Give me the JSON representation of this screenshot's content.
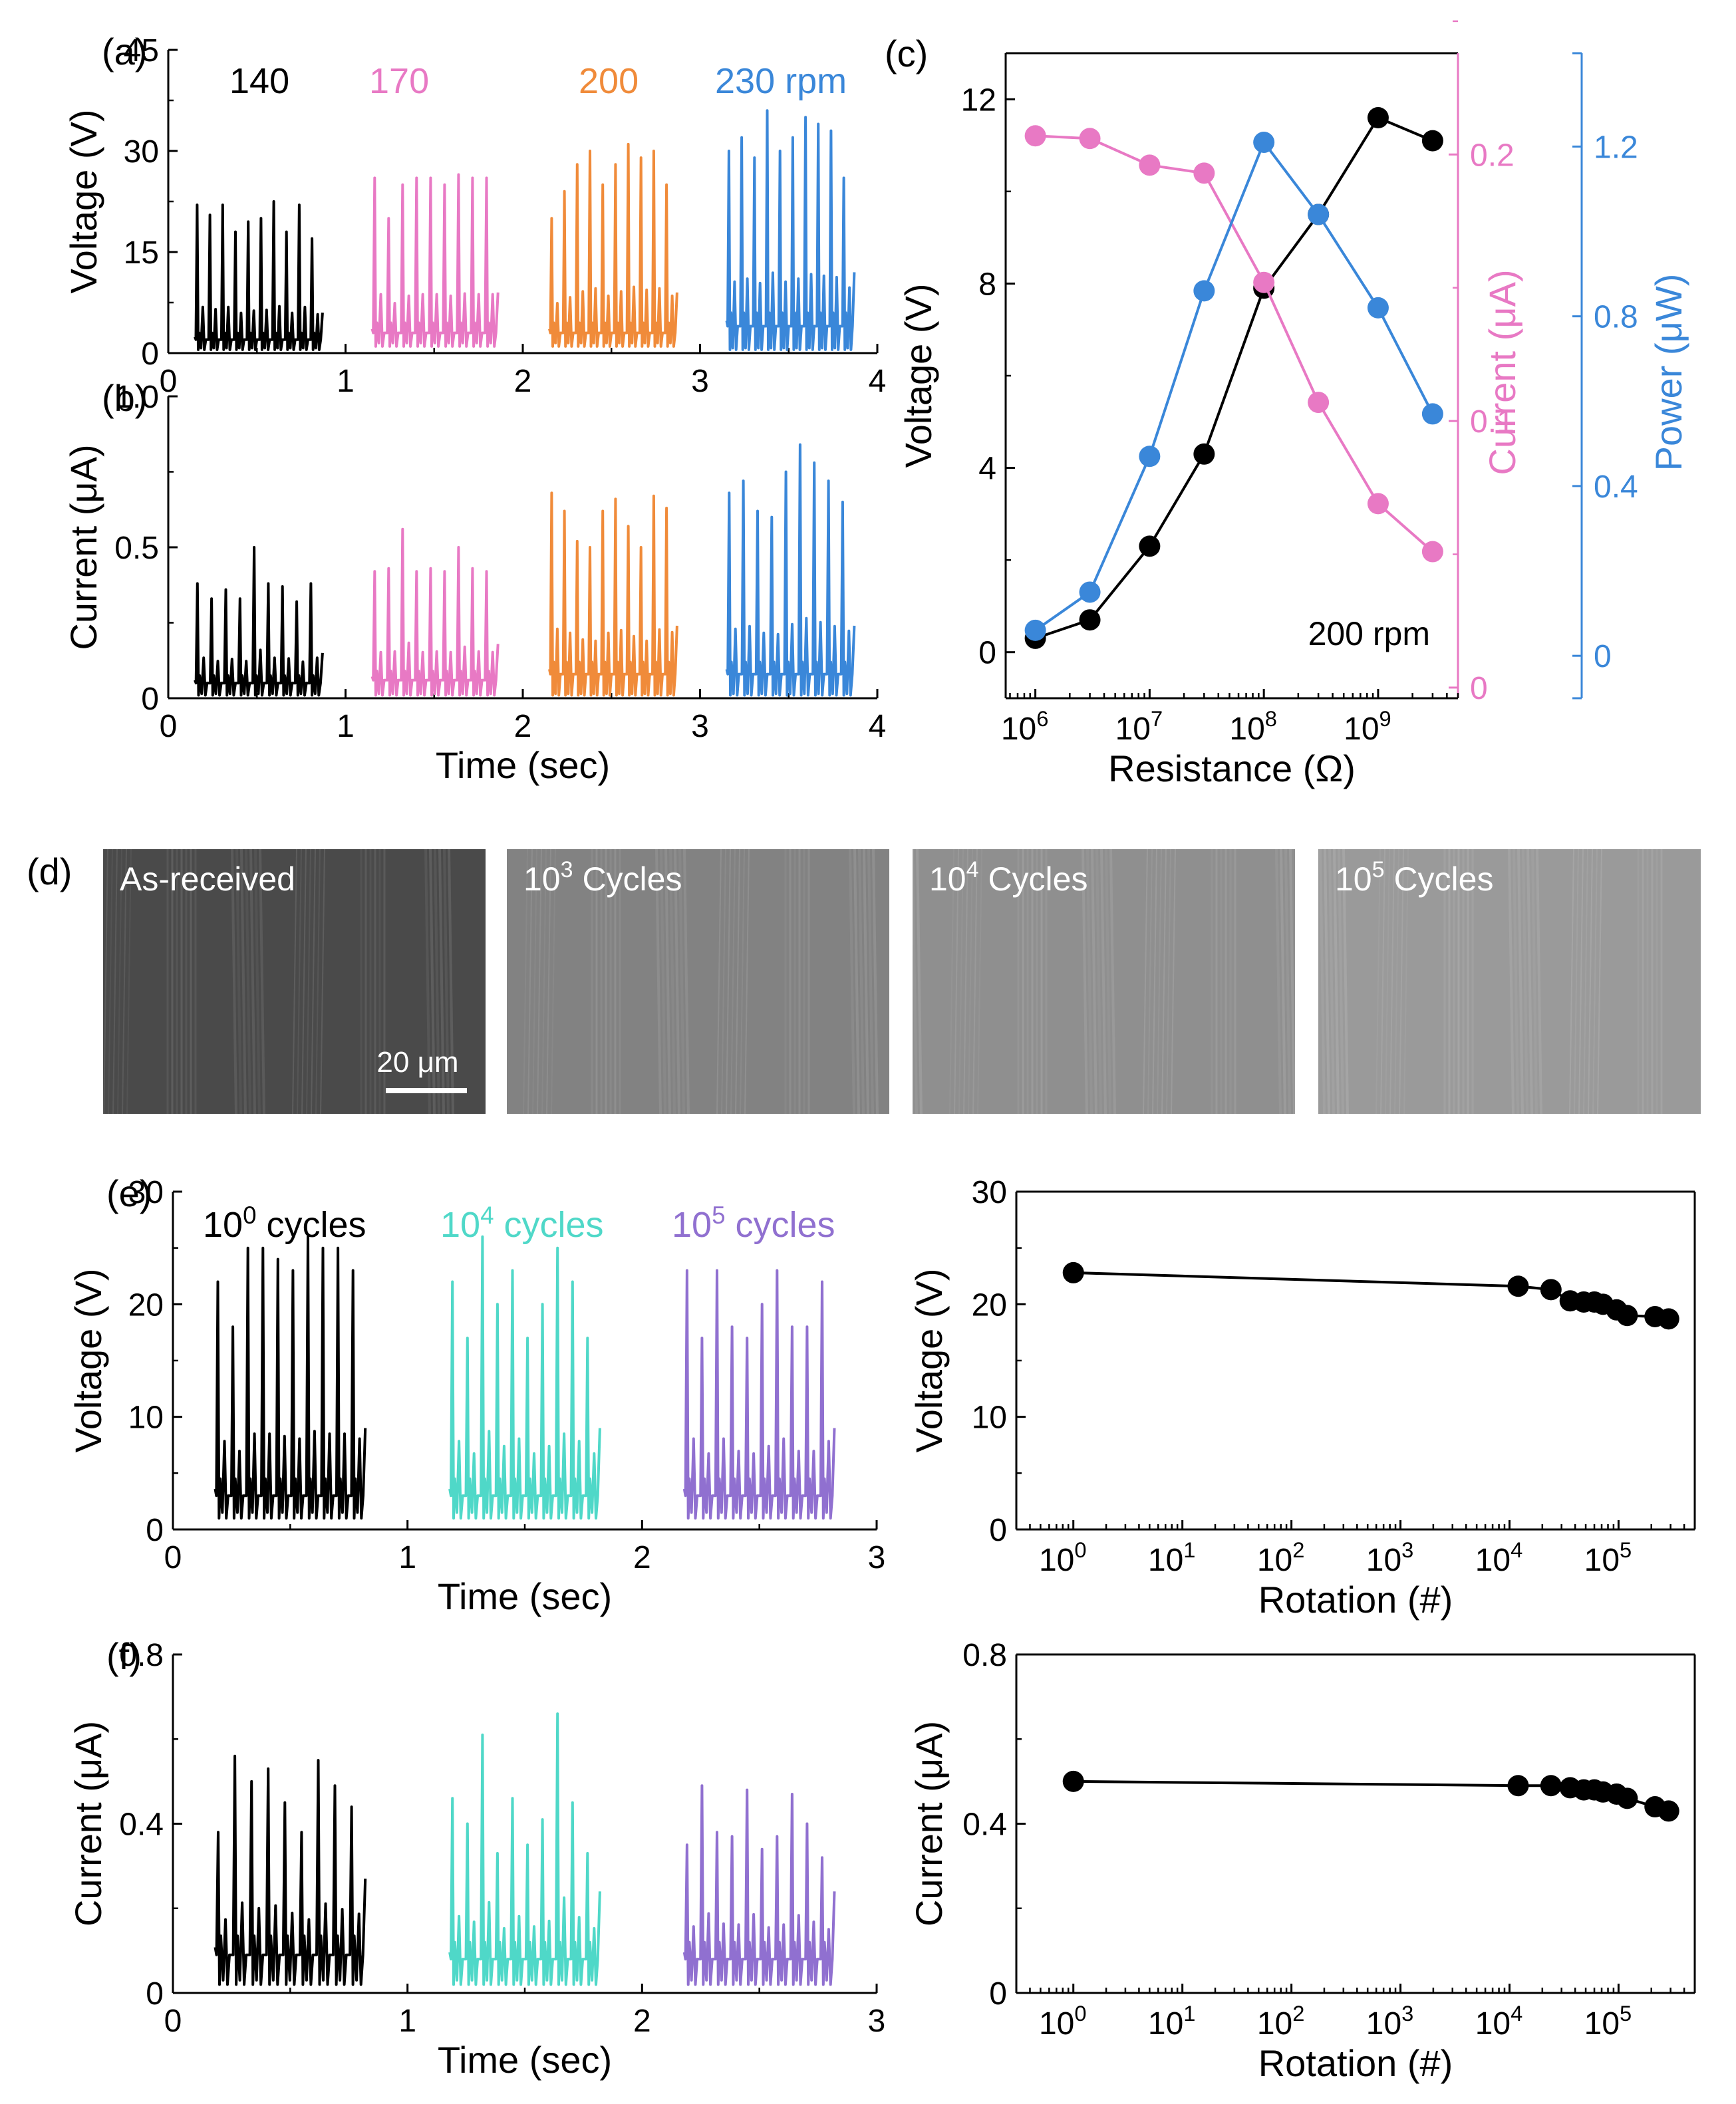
{
  "colors": {
    "axis": "#000000",
    "black": "#000000",
    "pink": "#e879c4",
    "orange": "#f08b3a",
    "blue": "#3a87d9",
    "teal": "#4fd8c8",
    "purple": "#9070d0",
    "sem_dark": "#555555",
    "sem_light": "#8e8e8e"
  },
  "sem": {
    "panel_label": "(d)",
    "images": [
      {
        "label": "As-received",
        "sup": "",
        "suffix": ""
      },
      {
        "label": "10",
        "sup": "3",
        "suffix": " Cycles"
      },
      {
        "label": "10",
        "sup": "4",
        "suffix": " Cycles"
      },
      {
        "label": "10",
        "sup": "5",
        "suffix": " Cycles"
      }
    ],
    "scale_bar": "20 μm"
  },
  "chart_data": [
    {
      "id": "a",
      "panel_label": "(a)",
      "type": "line",
      "ylabel": "Voltage (V)",
      "ylim": [
        0,
        45
      ],
      "yticks": [
        "0",
        "15",
        "30",
        "45"
      ],
      "xlim": [
        0,
        4
      ],
      "xticks": [
        "0",
        "1",
        "2",
        "3",
        "4"
      ],
      "xlabel": "",
      "series_labels": [
        {
          "text": "140",
          "color": "black"
        },
        {
          "text": "170",
          "color": "pink"
        },
        {
          "text": "200",
          "color": "orange"
        },
        {
          "text": "230 rpm",
          "color": "blue"
        }
      ],
      "series": [
        {
          "name": "140 rpm",
          "color": "black",
          "x0": 0.15,
          "x1": 0.87,
          "peaks": [
            22,
            20.5,
            22,
            18,
            19.5,
            20,
            22.5,
            18,
            22,
            17
          ],
          "base": 2,
          "valley": 0.5
        },
        {
          "name": "170 rpm",
          "color": "pink",
          "x0": 1.15,
          "x1": 1.86,
          "peaks": [
            26,
            20,
            25,
            26,
            26,
            25,
            26.5,
            26,
            26
          ],
          "base": 3,
          "valley": 1
        },
        {
          "name": "200 rpm",
          "color": "orange",
          "x0": 2.15,
          "x1": 2.87,
          "peaks": [
            20,
            24,
            28,
            30,
            25,
            28,
            31,
            29,
            30,
            25
          ],
          "base": 3,
          "valley": 1
        },
        {
          "name": "230 rpm",
          "color": "blue",
          "x0": 3.15,
          "x1": 3.87,
          "peaks": [
            30,
            32,
            29,
            36,
            30,
            32,
            35,
            34,
            33,
            26
          ],
          "base": 4,
          "valley": 0.5
        }
      ]
    },
    {
      "id": "b",
      "panel_label": "(b)",
      "type": "line",
      "ylabel": "Current (μA)",
      "ylim": [
        0,
        1.0
      ],
      "yticks": [
        "0",
        "0.5",
        "1.0"
      ],
      "xlim": [
        0,
        4
      ],
      "xticks": [
        "0",
        "1",
        "2",
        "3",
        "4"
      ],
      "xlabel": "Time (sec)",
      "series": [
        {
          "name": "140 rpm",
          "color": "black",
          "x0": 0.15,
          "x1": 0.87,
          "peaks": [
            0.38,
            0.33,
            0.36,
            0.33,
            0.5,
            0.38,
            0.37,
            0.32,
            0.38
          ],
          "base": 0.05,
          "valley": 0.01
        },
        {
          "name": "170 rpm",
          "color": "pink",
          "x0": 1.15,
          "x1": 1.86,
          "peaks": [
            0.42,
            0.43,
            0.56,
            0.42,
            0.43,
            0.42,
            0.5,
            0.43,
            0.42
          ],
          "base": 0.06,
          "valley": 0.01
        },
        {
          "name": "200 rpm",
          "color": "orange",
          "x0": 2.15,
          "x1": 2.87,
          "peaks": [
            0.68,
            0.62,
            0.52,
            0.5,
            0.62,
            0.66,
            0.57,
            0.5,
            0.67,
            0.63
          ],
          "base": 0.08,
          "valley": 0.01
        },
        {
          "name": "230 rpm",
          "color": "blue",
          "x0": 3.15,
          "x1": 3.87,
          "peaks": [
            0.68,
            0.72,
            0.62,
            0.6,
            0.75,
            0.84,
            0.78,
            0.72,
            0.65
          ],
          "base": 0.08,
          "valley": 0.01
        }
      ]
    },
    {
      "id": "c",
      "panel_label": "(c)",
      "type": "line",
      "xlabel": "Resistance (Ω)",
      "xscale": "log",
      "xtick_labels": [
        {
          "base": "10",
          "exp": "6"
        },
        {
          "base": "10",
          "exp": "7"
        },
        {
          "base": "10",
          "exp": "8"
        },
        {
          "base": "10",
          "exp": "9"
        }
      ],
      "x": [
        1000000,
        3000000,
        10000000,
        30000000,
        100000000,
        300000000,
        1000000000,
        3000000000
      ],
      "annotation": "200 rpm",
      "axes": [
        {
          "label": "Voltage (V)",
          "side": "left",
          "color": "black",
          "ylim": [
            -1,
            13
          ],
          "yticks": [
            "0",
            "4",
            "8",
            "12"
          ]
        },
        {
          "label": "Current (μA)",
          "side": "right",
          "color": "pink",
          "ylim": [
            -0.004,
            0.238
          ],
          "yticks": [
            "0",
            "0.1",
            "0.2"
          ]
        },
        {
          "label": "Power (μW)",
          "side": "right",
          "color": "blue",
          "ylim": [
            -0.1,
            1.42
          ],
          "yticks": [
            "0",
            "0.4",
            "0.8",
            "1.2"
          ]
        }
      ],
      "series": [
        {
          "name": "Voltage",
          "axis": 0,
          "color": "black",
          "values": [
            0.3,
            0.7,
            2.3,
            4.3,
            7.9,
            9.5,
            11.6,
            11.1
          ]
        },
        {
          "name": "Current",
          "axis": 1,
          "color": "pink",
          "values": [
            0.207,
            0.206,
            0.196,
            0.193,
            0.152,
            0.107,
            0.069,
            0.051
          ]
        },
        {
          "name": "Power",
          "axis": 2,
          "color": "blue",
          "values": [
            0.06,
            0.15,
            0.47,
            0.86,
            1.21,
            1.04,
            0.82,
            0.57
          ]
        }
      ]
    },
    {
      "id": "e_left",
      "panel_label": "(e)",
      "type": "line",
      "ylabel": "Voltage (V)",
      "ylim": [
        0,
        30
      ],
      "yticks": [
        "0",
        "10",
        "20",
        "30"
      ],
      "xlim": [
        0,
        3
      ],
      "xticks": [
        "0",
        "1",
        "2",
        "3"
      ],
      "xlabel": "Time (sec)",
      "series_labels": [
        {
          "text": "10",
          "sup": "0",
          "suffix": " cycles",
          "color": "black"
        },
        {
          "text": "10",
          "sup": "4",
          "suffix": " cycles",
          "color": "teal"
        },
        {
          "text": "10",
          "sup": "5",
          "suffix": " cycles",
          "color": "purple"
        }
      ],
      "series": [
        {
          "name": "10^0 cycles",
          "color": "black",
          "x0": 0.18,
          "x1": 0.82,
          "peaks": [
            22,
            18,
            25,
            25,
            24,
            23,
            26,
            25,
            25,
            23
          ],
          "base": 3,
          "valley": 1
        },
        {
          "name": "10^4 cycles",
          "color": "teal",
          "x0": 1.18,
          "x1": 1.82,
          "peaks": [
            22,
            17,
            26,
            20,
            23,
            17,
            20,
            25,
            22,
            17
          ],
          "base": 3,
          "valley": 1
        },
        {
          "name": "10^5 cycles",
          "color": "purple",
          "x0": 2.18,
          "x1": 2.82,
          "peaks": [
            23,
            17,
            23,
            18,
            17,
            20,
            23,
            18,
            18,
            22
          ],
          "base": 3,
          "valley": 1
        }
      ]
    },
    {
      "id": "e_right",
      "type": "scatter",
      "ylabel": "Voltage (V)",
      "ylim": [
        0,
        30
      ],
      "yticks": [
        "0",
        "10",
        "20",
        "30"
      ],
      "xlabel": "Rotation (#)",
      "xscale": "log",
      "xlim": [
        0.3,
        500000
      ],
      "xtick_labels": [
        {
          "base": "10",
          "exp": "0"
        },
        {
          "base": "10",
          "exp": "1"
        },
        {
          "base": "10",
          "exp": "2"
        },
        {
          "base": "10",
          "exp": "3"
        },
        {
          "base": "10",
          "exp": "4"
        },
        {
          "base": "10",
          "exp": "5"
        }
      ],
      "x": [
        1,
        12000,
        24000,
        36000,
        48000,
        60000,
        72000,
        96000,
        120000,
        216000,
        288000
      ],
      "values": [
        22.8,
        21.6,
        21.3,
        20.3,
        20.2,
        20.2,
        20.0,
        19.5,
        19.0,
        18.9,
        18.7
      ]
    },
    {
      "id": "f_left",
      "panel_label": "(f)",
      "type": "line",
      "ylabel": "Current (μA)",
      "ylim": [
        0,
        0.8
      ],
      "yticks": [
        "0",
        "0.4",
        "0.8"
      ],
      "xlim": [
        0,
        3
      ],
      "xticks": [
        "0",
        "1",
        "2",
        "3"
      ],
      "xlabel": "Time (sec)",
      "series": [
        {
          "name": "10^0 cycles",
          "color": "black",
          "x0": 0.18,
          "x1": 0.82,
          "peaks": [
            0.38,
            0.56,
            0.5,
            0.53,
            0.45,
            0.38,
            0.55,
            0.49,
            0.44
          ],
          "base": 0.09,
          "valley": 0.02
        },
        {
          "name": "10^4 cycles",
          "color": "teal",
          "x0": 1.18,
          "x1": 1.82,
          "peaks": [
            0.46,
            0.4,
            0.61,
            0.33,
            0.46,
            0.35,
            0.41,
            0.66,
            0.45,
            0.33
          ],
          "base": 0.08,
          "valley": 0.02
        },
        {
          "name": "10^5 cycles",
          "color": "purple",
          "x0": 2.18,
          "x1": 2.82,
          "peaks": [
            0.35,
            0.49,
            0.38,
            0.37,
            0.48,
            0.34,
            0.37,
            0.47,
            0.4,
            0.32
          ],
          "base": 0.08,
          "valley": 0.02
        }
      ]
    },
    {
      "id": "f_right",
      "type": "scatter",
      "ylabel": "Current (μA)",
      "ylim": [
        0,
        0.8
      ],
      "yticks": [
        "0",
        "0.4",
        "0.8"
      ],
      "xlabel": "Rotation (#)",
      "xscale": "log",
      "xlim": [
        0.3,
        500000
      ],
      "xtick_labels": [
        {
          "base": "10",
          "exp": "0"
        },
        {
          "base": "10",
          "exp": "1"
        },
        {
          "base": "10",
          "exp": "2"
        },
        {
          "base": "10",
          "exp": "3"
        },
        {
          "base": "10",
          "exp": "4"
        },
        {
          "base": "10",
          "exp": "5"
        }
      ],
      "x": [
        1,
        12000,
        24000,
        36000,
        48000,
        60000,
        72000,
        96000,
        120000,
        216000,
        288000
      ],
      "values": [
        0.5,
        0.49,
        0.49,
        0.485,
        0.48,
        0.48,
        0.475,
        0.47,
        0.46,
        0.44,
        0.43
      ]
    }
  ]
}
